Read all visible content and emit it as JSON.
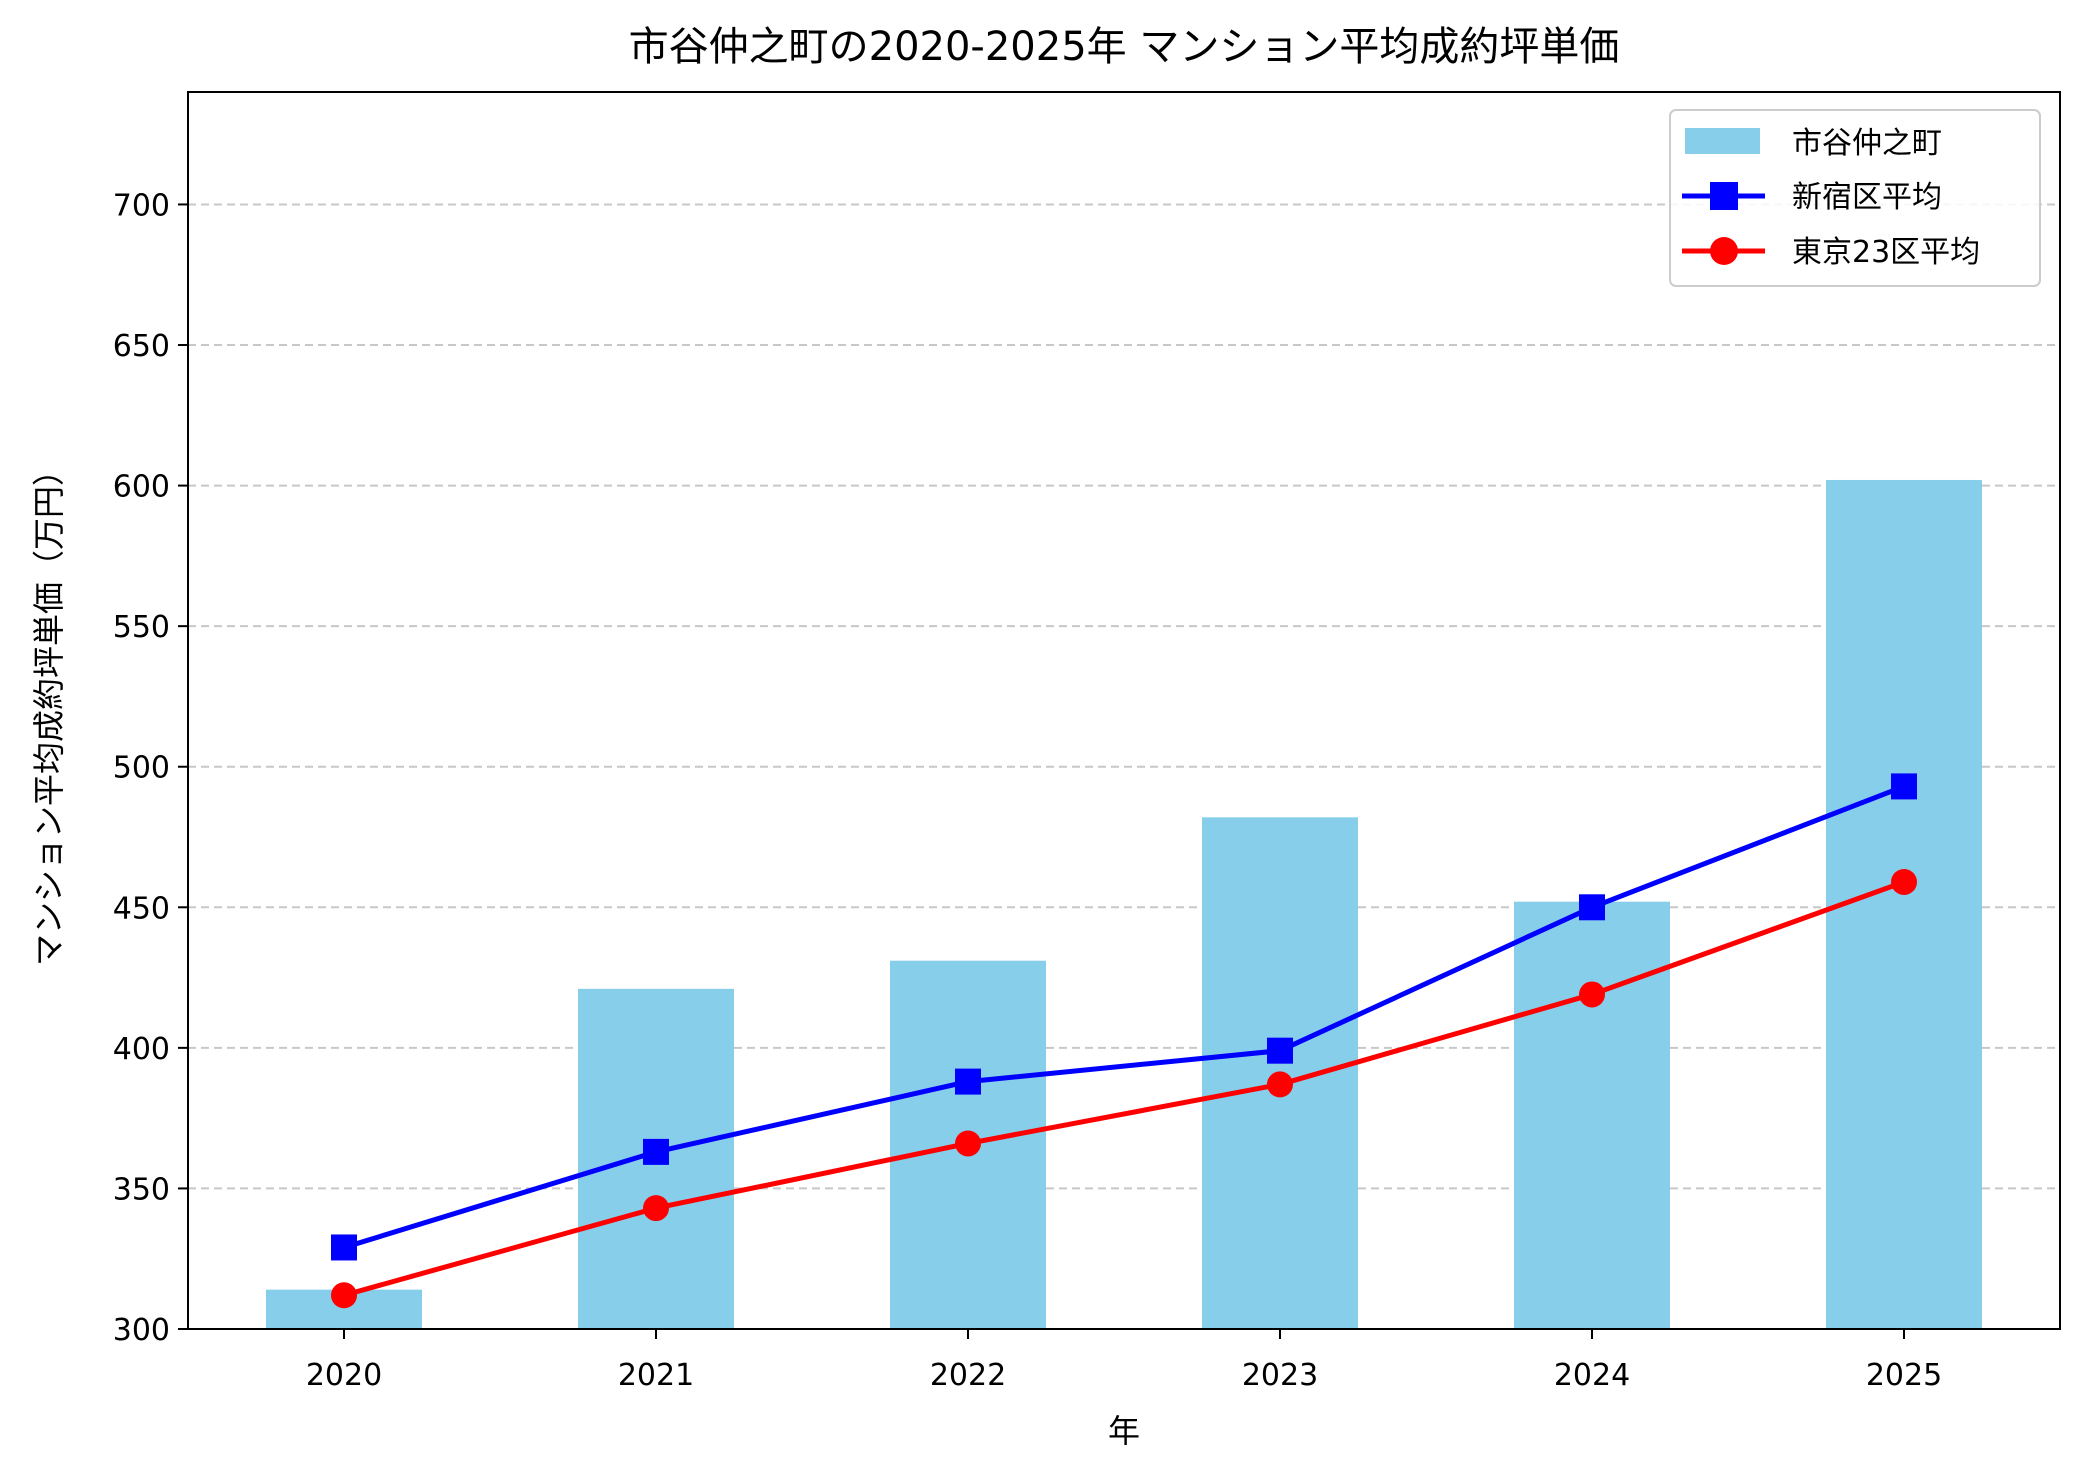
{
  "chart_data": {
    "type": "bar+line",
    "title": "市谷仲之町の2020-2025年 マンション平均成約坪単価",
    "xlabel": "年",
    "ylabel": "マンション平均成約坪単価（万円）",
    "categories": [
      "2020",
      "2021",
      "2022",
      "2023",
      "2024",
      "2025"
    ],
    "ylim": [
      300,
      740
    ],
    "yticks": [
      300,
      350,
      400,
      450,
      500,
      550,
      600,
      650,
      700
    ],
    "grid": "y-dashed",
    "legend_position": "top-right",
    "series": [
      {
        "name": "市谷仲之町",
        "kind": "bar",
        "color": "#87ceeb",
        "values": [
          314,
          421,
          431,
          482,
          452,
          602
        ]
      },
      {
        "name": "新宿区平均",
        "kind": "line",
        "marker": "square",
        "color": "#0000ff",
        "values": [
          329,
          363,
          388,
          399,
          450,
          493
        ]
      },
      {
        "name": "東京23区平均",
        "kind": "line",
        "marker": "circle",
        "color": "#ff0000",
        "values": [
          312,
          343,
          366,
          387,
          419,
          459
        ]
      }
    ]
  }
}
